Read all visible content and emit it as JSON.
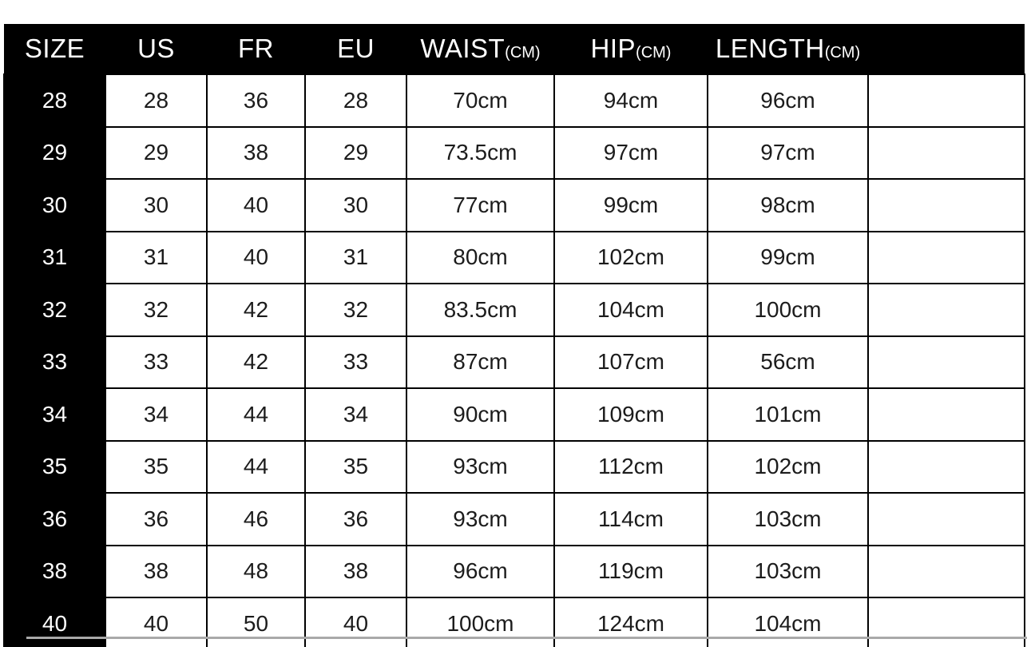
{
  "colors": {
    "header_bg": "#000000",
    "header_text": "#ffffff",
    "body_text": "#1c1c1c",
    "grid": "#000000",
    "bottom_rule": "#a9a9a9"
  },
  "chart_data": {
    "type": "table",
    "columns": [
      {
        "key": "size",
        "label": "SIZE"
      },
      {
        "key": "us",
        "label": "US"
      },
      {
        "key": "fr",
        "label": "FR"
      },
      {
        "key": "eu",
        "label": "EU"
      },
      {
        "key": "waist",
        "label": "WAIST",
        "unit": "(CM)"
      },
      {
        "key": "hip",
        "label": "HIP",
        "unit": "(CM)"
      },
      {
        "key": "length",
        "label": "LENGTH",
        "unit": "(CM)"
      },
      {
        "key": "empty",
        "label": ""
      }
    ],
    "rows": [
      {
        "size": "28",
        "us": "28",
        "fr": "36",
        "eu": "28",
        "waist": "70cm",
        "hip": "94cm",
        "length": "96cm",
        "empty": ""
      },
      {
        "size": "29",
        "us": "29",
        "fr": "38",
        "eu": "29",
        "waist": "73.5cm",
        "hip": "97cm",
        "length": "97cm",
        "empty": ""
      },
      {
        "size": "30",
        "us": "30",
        "fr": "40",
        "eu": "30",
        "waist": "77cm",
        "hip": "99cm",
        "length": "98cm",
        "empty": ""
      },
      {
        "size": "31",
        "us": "31",
        "fr": "40",
        "eu": "31",
        "waist": "80cm",
        "hip": "102cm",
        "length": "99cm",
        "empty": ""
      },
      {
        "size": "32",
        "us": "32",
        "fr": "42",
        "eu": "32",
        "waist": "83.5cm",
        "hip": "104cm",
        "length": "100cm",
        "empty": ""
      },
      {
        "size": "33",
        "us": "33",
        "fr": "42",
        "eu": "33",
        "waist": "87cm",
        "hip": "107cm",
        "length": "56cm",
        "empty": ""
      },
      {
        "size": "34",
        "us": "34",
        "fr": "44",
        "eu": "34",
        "waist": "90cm",
        "hip": "109cm",
        "length": "101cm",
        "empty": ""
      },
      {
        "size": "35",
        "us": "35",
        "fr": "44",
        "eu": "35",
        "waist": "93cm",
        "hip": "112cm",
        "length": "102cm",
        "empty": ""
      },
      {
        "size": "36",
        "us": "36",
        "fr": "46",
        "eu": "36",
        "waist": "93cm",
        "hip": "114cm",
        "length": "103cm",
        "empty": ""
      },
      {
        "size": "38",
        "us": "38",
        "fr": "48",
        "eu": "38",
        "waist": "96cm",
        "hip": "119cm",
        "length": "103cm",
        "empty": ""
      },
      {
        "size": "40",
        "us": "40",
        "fr": "50",
        "eu": "40",
        "waist": "100cm",
        "hip": "124cm",
        "length": "104cm",
        "empty": ""
      }
    ]
  }
}
